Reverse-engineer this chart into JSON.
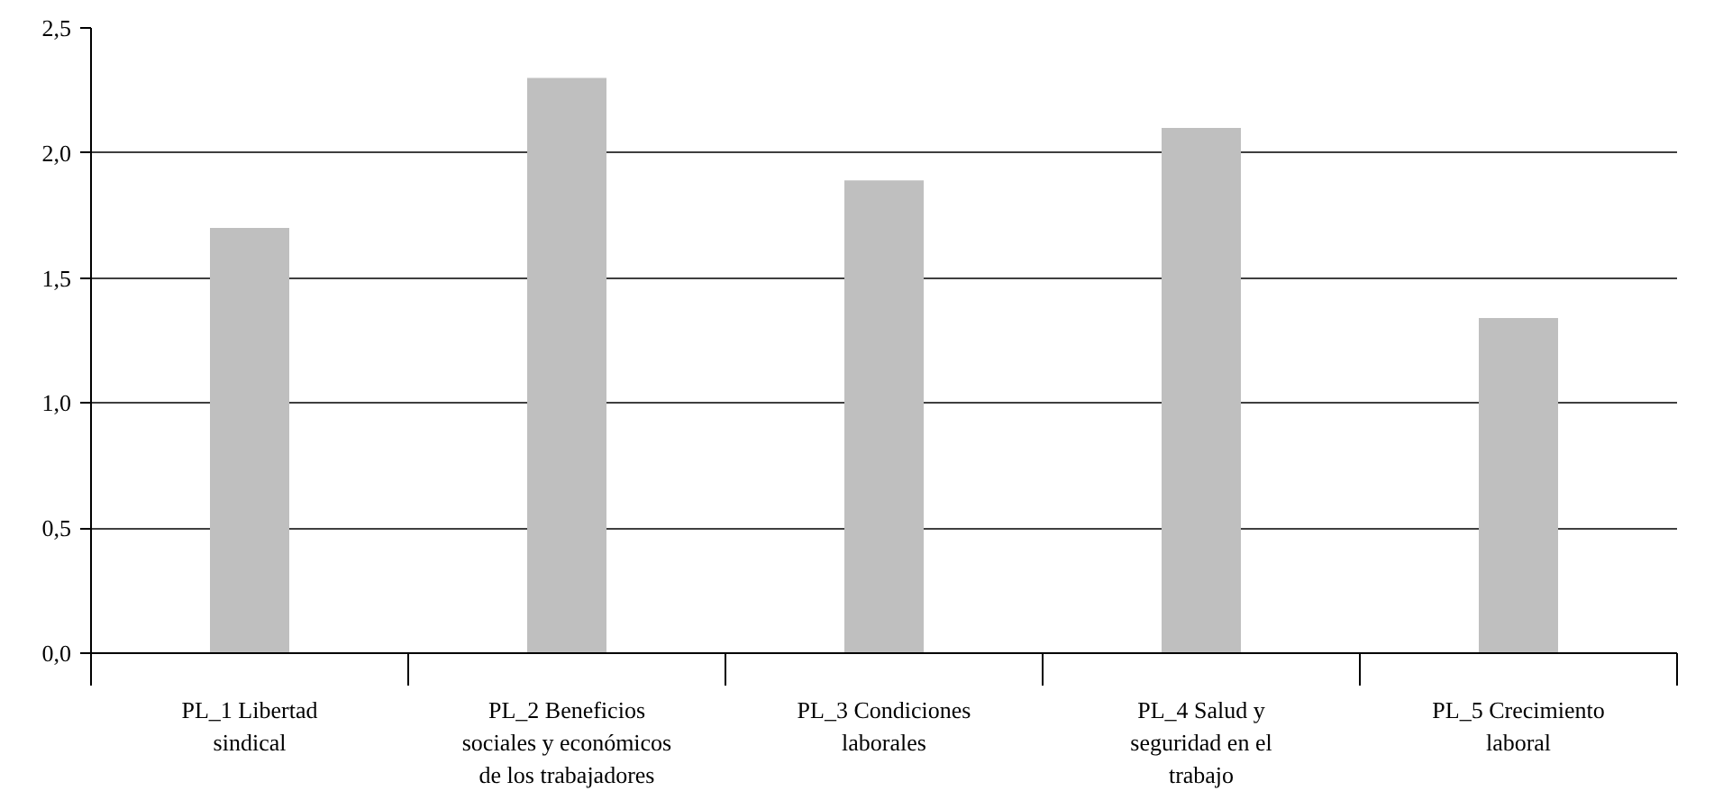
{
  "chart_data": {
    "type": "bar",
    "categories": [
      "PL_1 Libertad sindical",
      "PL_2 Beneficios sociales y económicos de los trabajadores",
      "PL_3 Condiciones laborales",
      "PL_4 Salud y seguridad en el trabajo",
      "PL_5 Crecimiento laboral"
    ],
    "values": [
      1.7,
      2.3,
      1.89,
      2.1,
      1.34
    ],
    "color": "#bfbfbf",
    "ylim": [
      0,
      2.5
    ],
    "yticks": [
      {
        "value": 0,
        "label": "0,0"
      },
      {
        "value": 0.5,
        "label": "0,5"
      },
      {
        "value": 1,
        "label": "1,0"
      },
      {
        "value": 1.5,
        "label": "1,5"
      },
      {
        "value": 2,
        "label": "2,0"
      },
      {
        "value": 2.5,
        "label": "2,5"
      }
    ],
    "grid": "y"
  }
}
